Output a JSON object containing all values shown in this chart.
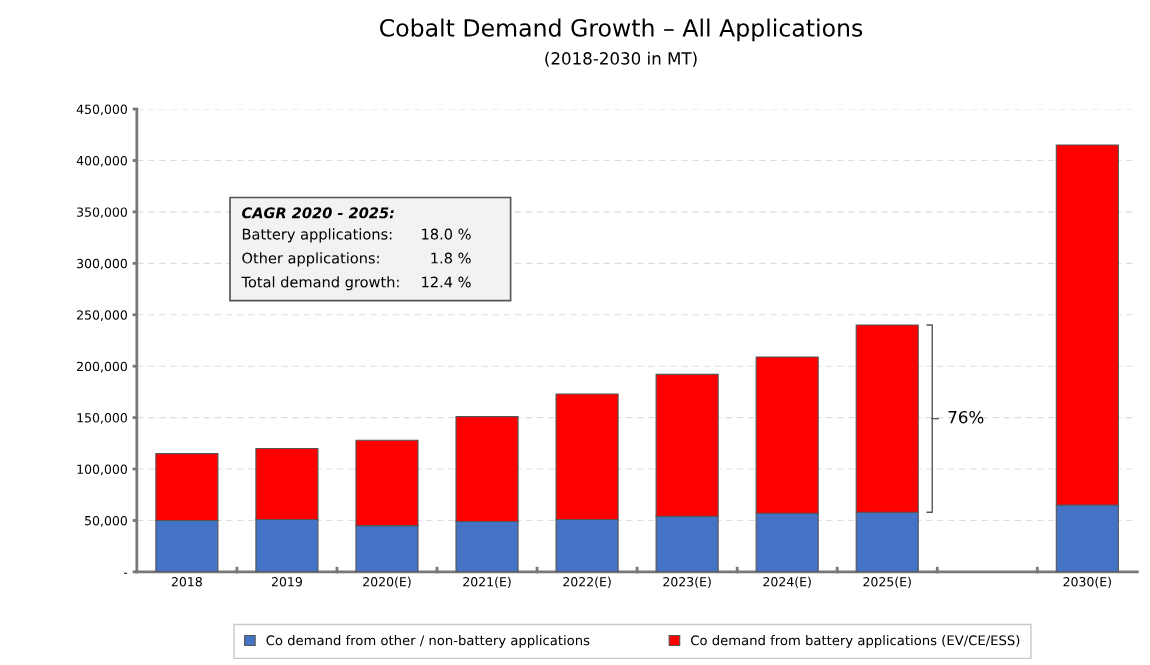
{
  "chart_data": {
    "type": "bar",
    "title": "Cobalt Demand Growth – All Applications",
    "subtitle": "(2018-2030 in MT)",
    "categories": [
      "2018",
      "2019",
      "2020(E)",
      "2021(E)",
      "2022(E)",
      "2023(E)",
      "2024(E)",
      "2025(E)",
      null,
      "2030(E)"
    ],
    "stacked": true,
    "series": [
      {
        "name": "Co demand from other / non-battery applications",
        "color": "#4472c4",
        "values": [
          50000,
          51000,
          45000,
          49000,
          51000,
          54000,
          57000,
          58000,
          null,
          65000
        ]
      },
      {
        "name": "Co demand from battery applications (EV/CE/ESS)",
        "color": "#ff0000",
        "values": [
          65000,
          69000,
          83000,
          102000,
          122000,
          138000,
          152000,
          182000,
          null,
          350000
        ]
      }
    ],
    "ylim": [
      0,
      450000
    ],
    "yticks": [
      {
        "value": 0,
        "label": "-"
      },
      {
        "value": 50000,
        "label": "50,000"
      },
      {
        "value": 100000,
        "label": "100,000"
      },
      {
        "value": 150000,
        "label": "150,000"
      },
      {
        "value": 200000,
        "label": "200,000"
      },
      {
        "value": 250000,
        "label": "250,000"
      },
      {
        "value": 300000,
        "label": "300,000"
      },
      {
        "value": 350000,
        "label": "350,000"
      },
      {
        "value": 400000,
        "label": "400,000"
      },
      {
        "value": 450000,
        "label": "450,000"
      }
    ],
    "grid": "y",
    "legend": "bottom",
    "annotations": [
      "CAGR 2020 - 2025:",
      "Battery applications:",
      "18.0 %",
      "Other applications:",
      "1.8 %",
      "Total demand growth:",
      "12.4 %",
      "76%"
    ]
  }
}
